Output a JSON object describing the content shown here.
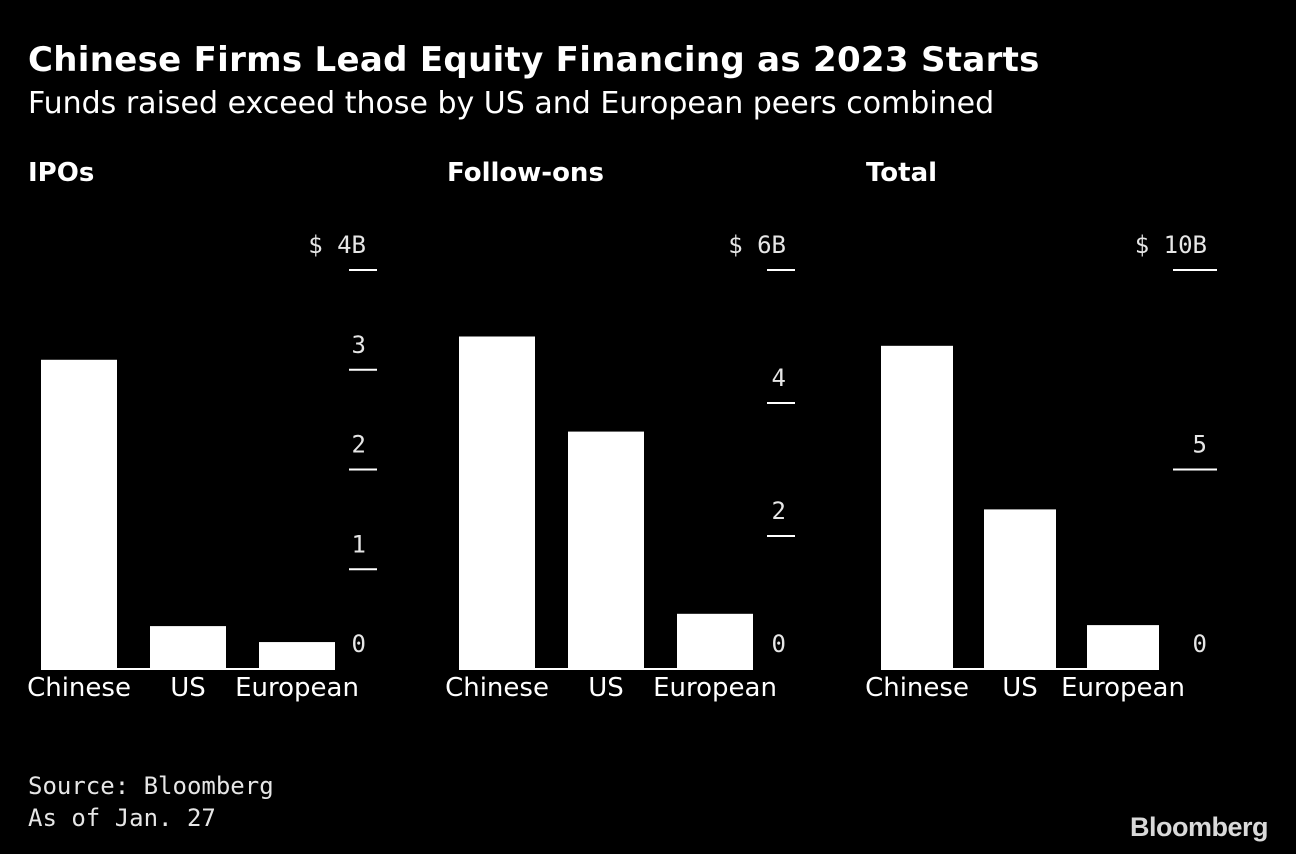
{
  "title": "Chinese Firms Lead Equity Financing as 2023 Starts",
  "subtitle": "Funds raised exceed those by US and European peers combined",
  "source": "Source: Bloomberg",
  "note": "As of Jan. 27",
  "logo": "Bloomberg",
  "colors": {
    "background": "#000000",
    "bar": "#ffffff",
    "text": "#ffffff"
  },
  "chart_data": [
    {
      "type": "bar",
      "title": "IPOs",
      "categories": [
        "Chinese",
        "US",
        "European"
      ],
      "values": [
        3.1,
        0.43,
        0.27
      ],
      "ylim": [
        0,
        4
      ],
      "ticks": [
        0,
        1,
        2,
        3,
        4
      ],
      "tick_labels": [
        "0",
        "1",
        "2",
        "3",
        "$ 4B"
      ],
      "grid": false
    },
    {
      "type": "bar",
      "title": "Follow-ons",
      "categories": [
        "Chinese",
        "US",
        "European"
      ],
      "values": [
        5.0,
        3.57,
        0.83
      ],
      "ylim": [
        0,
        6
      ],
      "ticks": [
        0,
        2,
        4,
        6
      ],
      "tick_labels": [
        "0",
        "2",
        "4",
        "$ 6B"
      ],
      "grid": false
    },
    {
      "type": "bar",
      "title": "Total",
      "categories": [
        "Chinese",
        "US",
        "European"
      ],
      "values": [
        8.1,
        4.0,
        1.1
      ],
      "ylim": [
        0,
        10
      ],
      "ticks": [
        0,
        5,
        10
      ],
      "tick_labels": [
        "0",
        "5",
        "$ 10B"
      ],
      "grid": false
    }
  ]
}
